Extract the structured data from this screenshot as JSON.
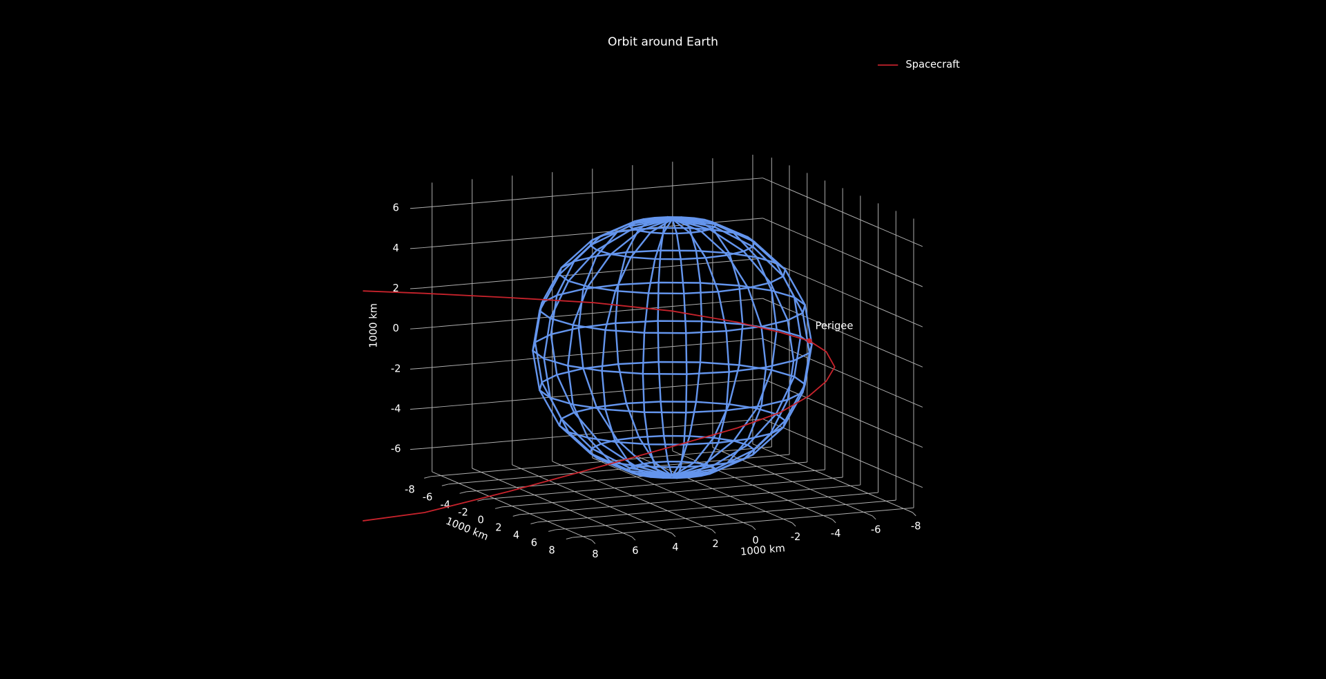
{
  "chart_data": {
    "type": "line3d",
    "title": "Orbit around Earth",
    "xlabel": "1000 km",
    "ylabel": "1000 km",
    "zlabel": "1000 km",
    "xlim": [
      -8.5,
      8.5
    ],
    "ylim": [
      -9,
      9
    ],
    "zlim": [
      -7.2,
      7.2
    ],
    "xticks": [
      -8,
      -6,
      -4,
      -2,
      0,
      2,
      4,
      6,
      8
    ],
    "yticks": [
      -8,
      -6,
      -4,
      -2,
      0,
      2,
      4,
      6,
      8
    ],
    "zticks": [
      -6,
      -4,
      -2,
      0,
      2,
      4,
      6
    ],
    "grid": true,
    "legend": "upper right",
    "series": [
      {
        "name": "Spacecraft",
        "color": "#c8232c",
        "x": [
          12.78,
          10.15,
          6.37,
          2.59,
          -0.89,
          -3.69,
          -5.6,
          -6.84,
          -7.46,
          -7.66,
          -7.01,
          -5.95,
          -4.25,
          -1.92,
          1.48,
          6.14,
          10.8,
          15.46,
          18.99
        ],
        "y": [
          -6,
          -5,
          -4,
          -3,
          -2,
          -1,
          -0.5,
          0,
          0.5,
          1,
          1.5,
          2,
          2.5,
          3,
          4,
          5,
          6,
          7,
          8
        ],
        "z": [
          2.79,
          2.63,
          2.28,
          1.89,
          1.36,
          0.75,
          0.18,
          -0.26,
          -0.76,
          -1.44,
          -2.01,
          -2.54,
          -3.14,
          -3.6,
          -3.96,
          -4.54,
          -5.09,
          -5.55,
          -5.47
        ]
      }
    ],
    "annotations": [
      {
        "text": "Perigee",
        "x": -6.84,
        "y": 0,
        "z": -0.26
      }
    ]
  }
}
